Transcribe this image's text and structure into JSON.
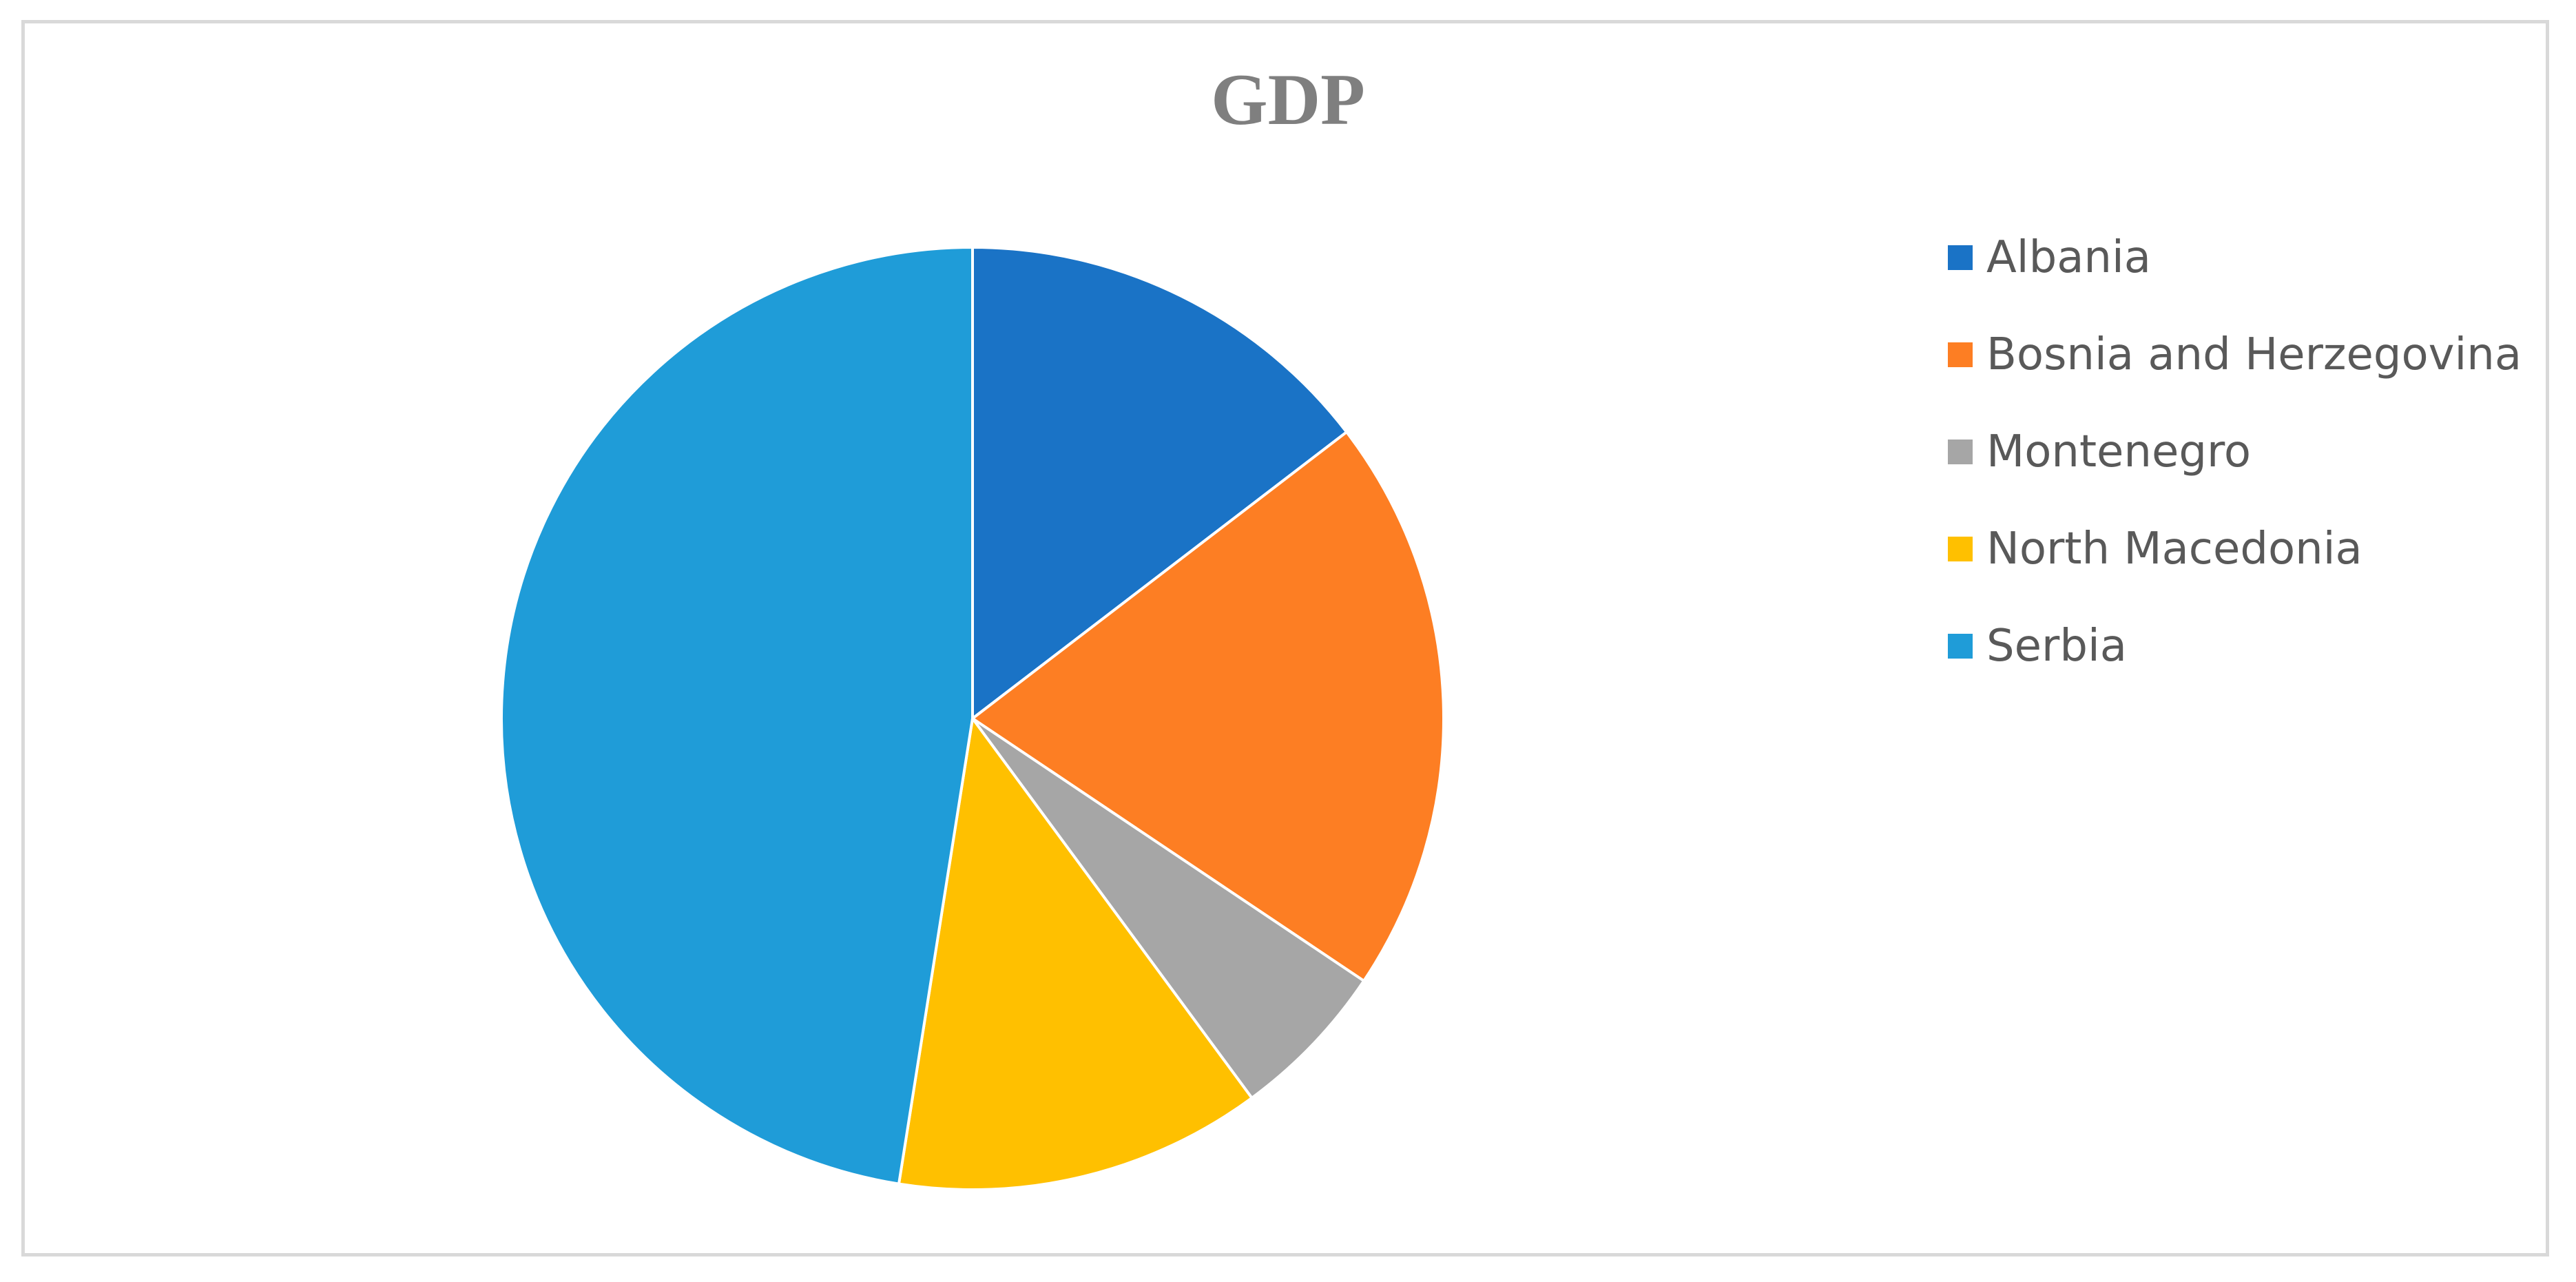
{
  "chart_data": {
    "type": "pie",
    "title": "GDP",
    "categories": [
      "Albania",
      "Bosnia and Herzegovina",
      "Montenegro",
      "North Macedonia",
      "Serbia"
    ],
    "values": [
      14.6,
      19.8,
      5.5,
      12.6,
      47.5
    ],
    "colors": [
      "#1a73c6",
      "#fd7e23",
      "#a6a6a6",
      "#ffc000",
      "#1f9cd8"
    ],
    "legend": "right",
    "start_angle_deg": 0,
    "direction": "clockwise"
  }
}
